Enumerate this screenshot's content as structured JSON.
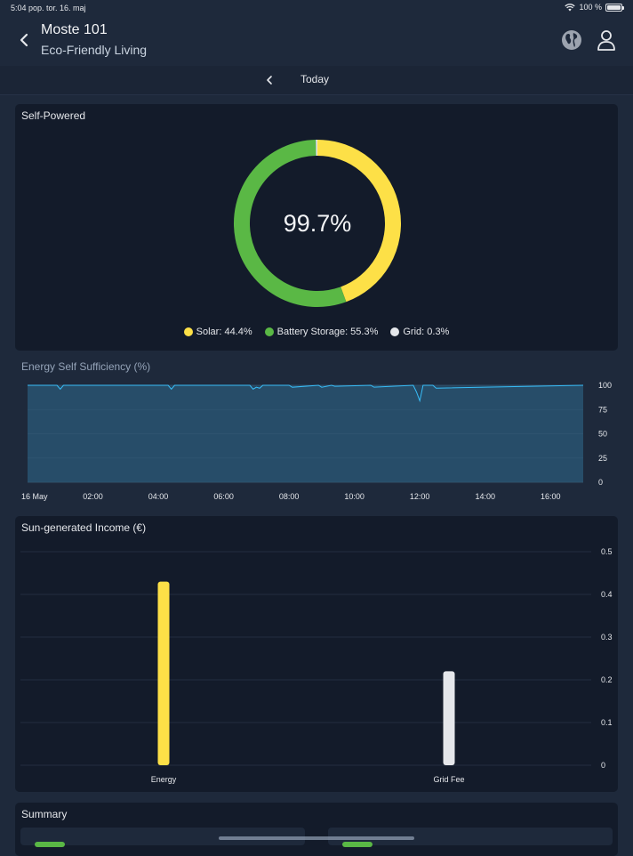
{
  "status_bar": {
    "time_date": "5:04 pop.   tor. 16. maj",
    "battery_text": "100 %"
  },
  "header": {
    "title": "Moste 101",
    "subtitle": "Eco-Friendly Living",
    "icons": [
      "chevron-left-icon",
      "globe-icon",
      "user-icon"
    ]
  },
  "date_nav": {
    "label": "Today"
  },
  "self_powered": {
    "title": "Self-Powered",
    "center_value": "99.7%",
    "legend": [
      {
        "label": "Solar: 44.4%",
        "color": "#fde047"
      },
      {
        "label": "Battery Storage: 55.3%",
        "color": "#5ab845"
      },
      {
        "label": "Grid: 0.3%",
        "color": "#e5e7eb"
      }
    ]
  },
  "energy_self_sufficiency": {
    "title": "Energy Self Sufficiency (%)",
    "y_ticks": [
      "100",
      "75",
      "50",
      "25",
      "0"
    ],
    "x_ticks": [
      "16 May",
      "02:00",
      "04:00",
      "06:00",
      "08:00",
      "10:00",
      "12:00",
      "14:00",
      "16:00"
    ]
  },
  "income": {
    "title": "Sun-generated Income (€)",
    "y_ticks": [
      "0.5",
      "0.4",
      "0.3",
      "0.2",
      "0.1",
      "0"
    ]
  },
  "summary": {
    "title": "Summary"
  },
  "chart_data": [
    {
      "type": "pie",
      "title": "Self-Powered",
      "categories": [
        "Solar",
        "Battery Storage",
        "Grid"
      ],
      "values": [
        44.4,
        55.3,
        0.3
      ],
      "colors": [
        "#fde047",
        "#5ab845",
        "#e5e7eb"
      ],
      "center_label": "99.7%",
      "legend": "bottom"
    },
    {
      "type": "area",
      "title": "Energy Self Sufficiency (%)",
      "x_ticks": [
        "16 May",
        "02:00",
        "04:00",
        "06:00",
        "08:00",
        "10:00",
        "12:00",
        "14:00",
        "16:00"
      ],
      "x_range_hours": [
        0,
        17
      ],
      "ylim": [
        0,
        100
      ],
      "y_ticks": [
        0,
        25,
        50,
        75,
        100
      ],
      "series": [
        {
          "x_hours": [
            0,
            0.9,
            1.0,
            1.1,
            4.3,
            4.4,
            4.5,
            6.8,
            6.9,
            7.0,
            7.1,
            7.2,
            8.0,
            8.1,
            8.9,
            9.0,
            9.3,
            9.4,
            10.5,
            10.6,
            11.8,
            11.9,
            12.0,
            12.1,
            12.4,
            12.5,
            17
          ],
          "values": [
            100,
            100,
            96,
            100,
            100,
            96,
            100,
            100,
            96,
            98,
            97,
            100,
            100,
            98,
            100,
            98,
            100,
            99,
            100,
            98,
            100,
            93,
            84,
            100,
            100,
            97,
            100
          ],
          "color": "#38bdf8"
        }
      ],
      "grid": true
    },
    {
      "type": "bar",
      "title": "Sun-generated Income (€)",
      "categories": [
        "Energy",
        "Grid Fee"
      ],
      "values": [
        0.43,
        0.22
      ],
      "colors": [
        "#fde047",
        "#e5e7eb"
      ],
      "ylim": [
        0,
        0.5
      ],
      "y_ticks": [
        0,
        0.1,
        0.2,
        0.3,
        0.4,
        0.5
      ],
      "grid": true
    }
  ]
}
